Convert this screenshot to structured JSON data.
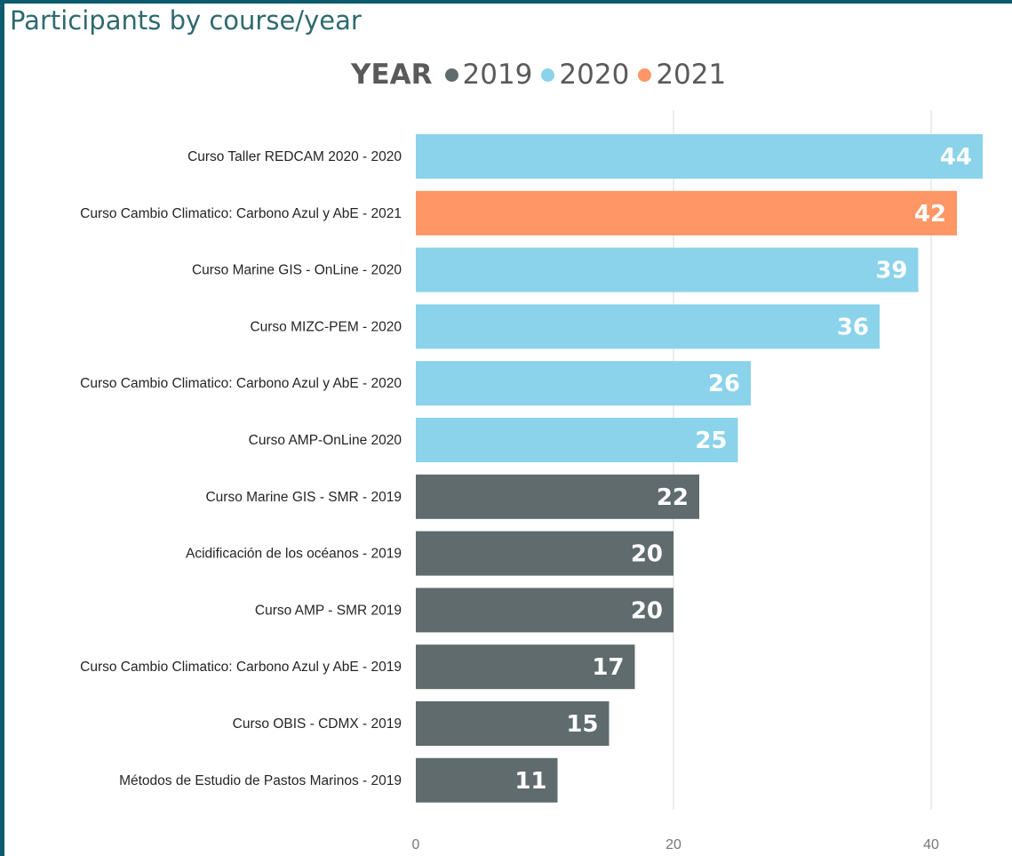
{
  "title": "Participants by course/year",
  "legend": {
    "title": "YEAR",
    "items": [
      {
        "label": "2019",
        "color": "#5f6b6d"
      },
      {
        "label": "2020",
        "color": "#8ad3ea"
      },
      {
        "label": "2021",
        "color": "#fe9666"
      }
    ]
  },
  "chart_data": {
    "type": "bar",
    "orientation": "horizontal",
    "title": "Participants by course/year",
    "xlim": [
      0,
      44
    ],
    "x_ticks": [
      0,
      20,
      40
    ],
    "grid": true,
    "legend_position": "top-center",
    "categories": [
      "Curso Taller REDCAM 2020 - 2020",
      "Curso Cambio Climatico: Carbono Azul y AbE - 2021",
      "Curso Marine GIS - OnLine - 2020",
      "Curso MIZC-PEM - 2020",
      "Curso Cambio Climatico: Carbono Azul y AbE - 2020",
      "Curso AMP-OnLine 2020",
      "Curso Marine GIS - SMR - 2019",
      "Acidificación de los océanos - 2019",
      "Curso AMP - SMR 2019",
      "Curso Cambio Climatico: Carbono Azul y AbE - 2019",
      "Curso OBIS - CDMX - 2019",
      "Métodos de Estudio de Pastos Marinos - 2019"
    ],
    "values": [
      44,
      42,
      39,
      36,
      26,
      25,
      22,
      20,
      20,
      17,
      15,
      11
    ],
    "years": [
      "2020",
      "2021",
      "2020",
      "2020",
      "2020",
      "2020",
      "2019",
      "2019",
      "2019",
      "2019",
      "2019",
      "2019"
    ]
  }
}
